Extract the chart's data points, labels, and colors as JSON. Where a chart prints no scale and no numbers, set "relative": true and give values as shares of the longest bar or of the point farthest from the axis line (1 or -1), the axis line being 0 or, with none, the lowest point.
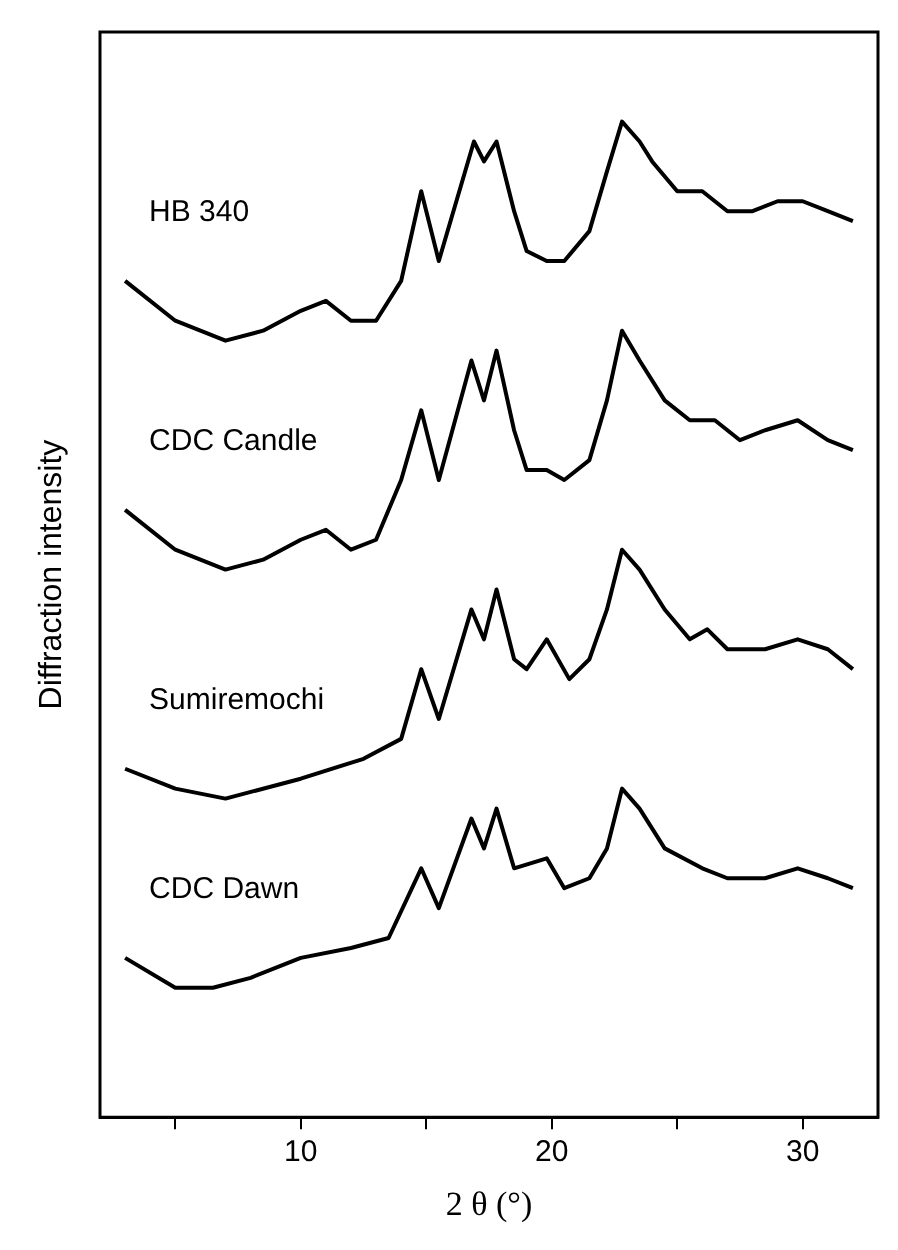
{
  "chart_data": {
    "type": "line",
    "relative": true,
    "xlabel": "2 θ (°)",
    "ylabel": "Diffraction intensity",
    "xlim": [
      2,
      33
    ],
    "xticks": [
      {
        "value": 5,
        "label": null
      },
      10,
      {
        "value": 15,
        "label": null
      },
      20,
      {
        "value": 25,
        "label": null
      },
      30
    ],
    "grid": false,
    "legend": false,
    "marker": "none",
    "line_style": "solid",
    "series": [
      {
        "name": "HB 340",
        "color": "#000000",
        "x": [
          3,
          5,
          7,
          8.5,
          10,
          11,
          12,
          13,
          14,
          14.8,
          15.5,
          16.9,
          17.3,
          17.8,
          18.5,
          19,
          19.8,
          20.5,
          21.5,
          22.2,
          22.8,
          23.5,
          24,
          25,
          26,
          27,
          28,
          29,
          30,
          31,
          32
        ],
        "values": [
          0.84,
          0.8,
          0.78,
          0.79,
          0.81,
          0.82,
          0.8,
          0.8,
          0.84,
          0.93,
          0.86,
          0.98,
          0.96,
          0.98,
          0.91,
          0.87,
          0.86,
          0.86,
          0.89,
          0.95,
          1.0,
          0.98,
          0.96,
          0.93,
          0.93,
          0.91,
          0.91,
          0.92,
          0.92,
          0.91,
          0.9
        ]
      },
      {
        "name": "CDC Candle",
        "color": "#000000",
        "x": [
          3,
          5,
          7,
          8.5,
          10,
          11,
          12,
          13,
          14,
          14.8,
          15.5,
          16.8,
          17.3,
          17.8,
          18.5,
          19,
          19.8,
          20.5,
          21.5,
          22.2,
          22.8,
          23.5,
          24.5,
          25.5,
          26.5,
          27.5,
          28.5,
          29.8,
          31,
          32
        ],
        "values": [
          0.61,
          0.57,
          0.55,
          0.56,
          0.58,
          0.59,
          0.57,
          0.58,
          0.64,
          0.71,
          0.64,
          0.76,
          0.72,
          0.77,
          0.69,
          0.65,
          0.65,
          0.64,
          0.66,
          0.72,
          0.79,
          0.76,
          0.72,
          0.7,
          0.7,
          0.68,
          0.69,
          0.7,
          0.68,
          0.67
        ]
      },
      {
        "name": "Sumiremochi",
        "color": "#000000",
        "x": [
          3,
          5,
          7,
          10,
          12.5,
          14,
          14.8,
          15.5,
          16.8,
          17.3,
          17.8,
          18.5,
          19,
          19.8,
          20.7,
          21.5,
          22.2,
          22.8,
          23.5,
          24.5,
          25.5,
          26.2,
          27,
          28.5,
          29.8,
          31,
          32
        ],
        "values": [
          0.35,
          0.33,
          0.32,
          0.34,
          0.36,
          0.38,
          0.45,
          0.4,
          0.51,
          0.48,
          0.53,
          0.46,
          0.45,
          0.48,
          0.44,
          0.46,
          0.51,
          0.57,
          0.55,
          0.51,
          0.48,
          0.49,
          0.47,
          0.47,
          0.48,
          0.47,
          0.45
        ]
      },
      {
        "name": "CDC Dawn",
        "color": "#000000",
        "x": [
          3,
          5,
          6.5,
          8,
          10,
          12,
          13.5,
          14.8,
          15.5,
          16.8,
          17.3,
          17.8,
          18.5,
          19.8,
          20.5,
          21.5,
          22.2,
          22.8,
          23.5,
          24.5,
          26,
          27,
          28.5,
          29.8,
          31,
          32
        ],
        "values": [
          0.16,
          0.13,
          0.13,
          0.14,
          0.16,
          0.17,
          0.18,
          0.25,
          0.21,
          0.3,
          0.27,
          0.31,
          0.25,
          0.26,
          0.23,
          0.24,
          0.27,
          0.33,
          0.31,
          0.27,
          0.25,
          0.24,
          0.24,
          0.25,
          0.24,
          0.23
        ]
      }
    ]
  }
}
